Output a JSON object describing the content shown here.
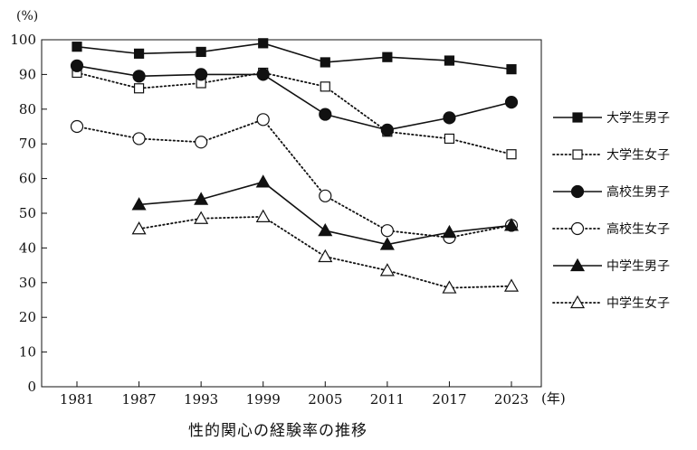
{
  "chart_data": {
    "type": "line",
    "title": "性的関心の経験率の推移",
    "y_unit": "(%)",
    "x_unit": "(年)",
    "x": [
      1981,
      1987,
      1993,
      1999,
      2005,
      2011,
      2017,
      2023
    ],
    "y_ticks": [
      0,
      10,
      20,
      30,
      40,
      50,
      60,
      70,
      80,
      90,
      100
    ],
    "ylim": [
      0,
      100
    ],
    "grid": false,
    "legend_position": "right",
    "series": [
      {
        "name": "大学生男子",
        "values": [
          98,
          96,
          96.5,
          99,
          93.5,
          95,
          94,
          91.5
        ],
        "line": "solid",
        "marker": "square",
        "filled": true
      },
      {
        "name": "大学生女子",
        "values": [
          90.5,
          86,
          87.5,
          90.5,
          86.5,
          73.5,
          71.5,
          67
        ],
        "line": "dotted",
        "marker": "square",
        "filled": false
      },
      {
        "name": "高校生男子",
        "values": [
          92.5,
          89.5,
          90,
          90,
          78.5,
          74,
          77.5,
          82
        ],
        "line": "solid",
        "marker": "circle",
        "filled": true
      },
      {
        "name": "高校生女子",
        "values": [
          75,
          71.5,
          70.5,
          77,
          55,
          45,
          43,
          46.5
        ],
        "line": "dotted",
        "marker": "circle",
        "filled": false
      },
      {
        "name": "中学生男子",
        "values": [
          null,
          52.5,
          54,
          59,
          45,
          41,
          44.5,
          46.5
        ],
        "line": "solid",
        "marker": "triangle",
        "filled": true
      },
      {
        "name": "中学生女子",
        "values": [
          null,
          45.5,
          48.5,
          49,
          37.5,
          33.5,
          28.5,
          29
        ],
        "line": "dotted",
        "marker": "triangle",
        "filled": false
      }
    ]
  }
}
